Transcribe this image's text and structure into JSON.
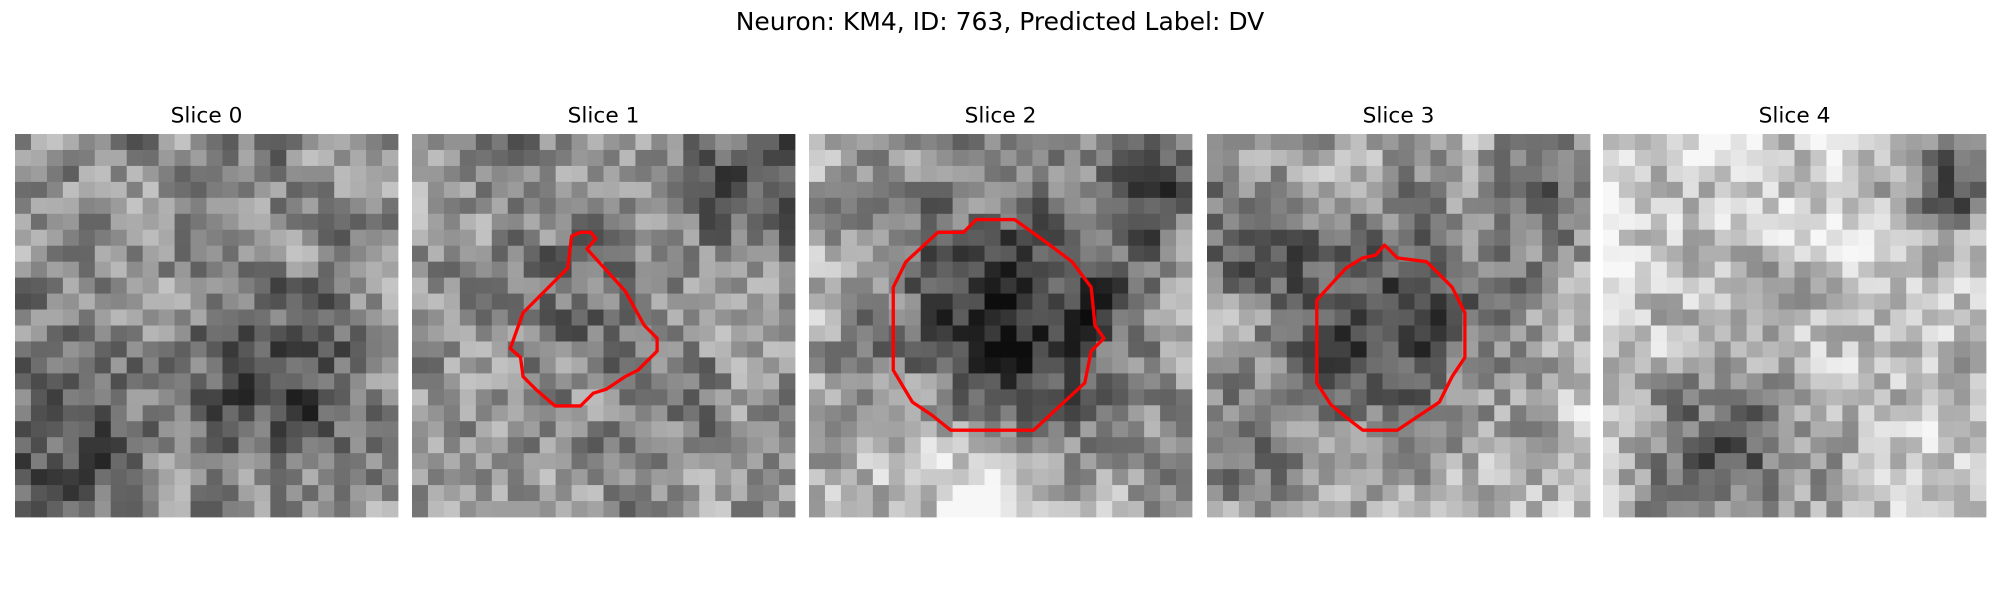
{
  "header": {
    "title": "Neuron: KM4, ID: 763, Predicted Label: DV"
  },
  "panels": [
    {
      "title": "Slice 0"
    },
    {
      "title": "Slice 1"
    },
    {
      "title": "Slice 2"
    },
    {
      "title": "Slice 3"
    },
    {
      "title": "Slice 4"
    }
  ]
}
